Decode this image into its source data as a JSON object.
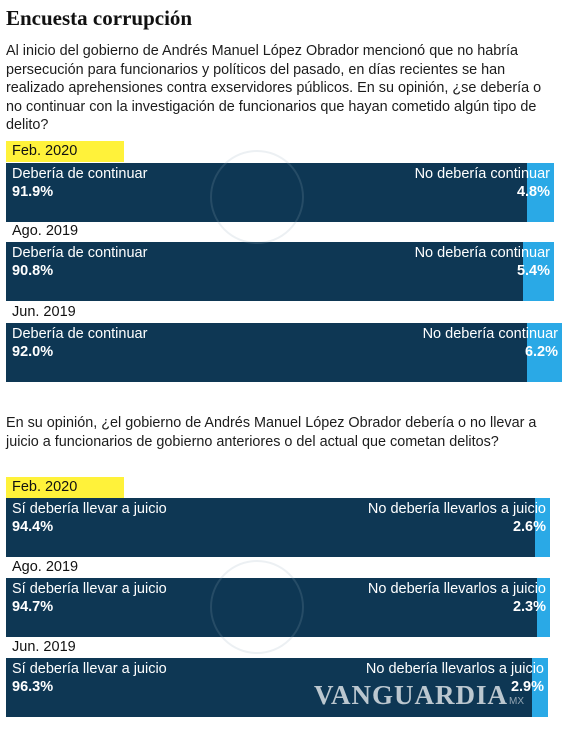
{
  "title": "Encuesta corrupción",
  "chart_data": [
    {
      "type": "bar",
      "question": "Al inicio del gobierno de Andrés Manuel López Obrador mencionó que no habría persecución para funcionarios y políticos del pasado, en días recientes se han realizado aprehensiones contra exservidores públicos. En su opinión, ¿se debería o no continuar con la investigación de funcionarios que hayan cometido algún tipo de delito?",
      "series_names": [
        "Debería de continuar",
        "No debería continuar"
      ],
      "categories": [
        "Feb. 2020",
        "Ago. 2019",
        "Jun. 2019"
      ],
      "rows": [
        {
          "date": "Feb. 2020",
          "highlight": true,
          "left_label": "Debería de continuar",
          "left_value": 91.9,
          "left_text": "91.9%",
          "right_label": "No debería continuar",
          "right_value": 4.8,
          "right_text": "4.8%"
        },
        {
          "date": "Ago. 2019",
          "highlight": false,
          "left_label": "Debería de continuar",
          "left_value": 90.8,
          "left_text": "90.8%",
          "right_label": "No debería continuar",
          "right_value": 5.4,
          "right_text": "5.4%"
        },
        {
          "date": "Jun. 2019",
          "highlight": false,
          "left_label": "Debería de continuar",
          "left_value": 92.0,
          "left_text": "92.0%",
          "right_label": "No debería continuar",
          "right_value": 6.2,
          "right_text": "6.2%"
        }
      ]
    },
    {
      "type": "bar",
      "question": "En su opinión, ¿el gobierno de Andrés Manuel López Obrador debería o no llevar a juicio  a funcionarios de gobierno anteriores o del actual que cometan delitos?",
      "series_names": [
        "Sí debería llevar a juicio",
        "No debería llevarlos a juicio"
      ],
      "categories": [
        "Feb. 2020",
        "Ago. 2019",
        "Jun. 2019"
      ],
      "rows": [
        {
          "date": "Feb. 2020",
          "highlight": true,
          "left_label": "Sí debería llevar a juicio",
          "left_value": 94.4,
          "left_text": "94.4%",
          "right_label": "No debería llevarlos a juicio",
          "right_value": 2.6,
          "right_text": "2.6%"
        },
        {
          "date": "Ago. 2019",
          "highlight": false,
          "left_label": "Sí debería llevar a juicio",
          "left_value": 94.7,
          "left_text": "94.7%",
          "right_label": "No debería llevarlos a juicio",
          "right_value": 2.3,
          "right_text": "2.3%"
        },
        {
          "date": "Jun. 2019",
          "highlight": false,
          "left_label": "Sí debería llevar a juicio",
          "left_value": 96.3,
          "left_text": "96.3%",
          "right_label": "No debería llevarlos a juicio",
          "right_value": 2.9,
          "right_text": "2.9%"
        }
      ]
    }
  ],
  "colors": {
    "left_bar": "#0e3754",
    "right_bar": "#2aa9e6",
    "highlight": "#fff23a"
  },
  "watermark": {
    "brand": "VANGUARDIA",
    "suffix": "MX"
  }
}
